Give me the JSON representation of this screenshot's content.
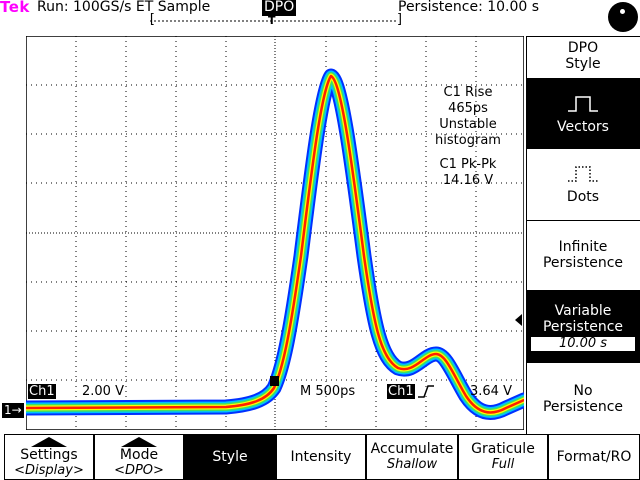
{
  "status": {
    "brand": "Tek",
    "run": "Run: 100GS/s ET  Sample",
    "mode_badge": "DPO",
    "persistence": "Persistence: 10.00 s"
  },
  "measurements": {
    "rise_title": "C1 Rise",
    "rise_value": "465ps",
    "rise_note1": "Unstable",
    "rise_note2": "histogram",
    "pkpk_title": "C1 Pk-Pk",
    "pkpk_value": "14.16 V"
  },
  "readout": {
    "channel": "Ch1",
    "volts_div": "2.00 V",
    "timebase": "M  500ps",
    "trigger_channel": "Ch1",
    "trigger_level": "3.64 V",
    "ground_marker": "1→"
  },
  "side_menu": {
    "title_line1": "DPO",
    "title_line2": "Style",
    "vectors": "Vectors",
    "dots": "Dots",
    "infinite_line1": "Infinite",
    "infinite_line2": "Persistence",
    "variable_line1": "Variable",
    "variable_line2": "Persistence",
    "variable_value": "10.00 s",
    "no_line1": "No",
    "no_line2": "Persistence"
  },
  "bottom_menu": {
    "settings_label": "Settings",
    "settings_sub": "<Display>",
    "mode_label": "Mode",
    "mode_sub": "<DPO>",
    "style_label": "Style",
    "intensity_label": "Intensity",
    "accumulate_label": "Accumulate",
    "accumulate_sub": "Shallow",
    "graticule_label": "Graticule",
    "graticule_sub": "Full",
    "format_label": "Format/RO"
  },
  "colors": {
    "brand": "#ff00ff",
    "trace_core": "#ff2000",
    "trace_mid": "#ffff00",
    "trace_outer": "#00c0ff",
    "trace_edge": "#0030ff"
  }
}
